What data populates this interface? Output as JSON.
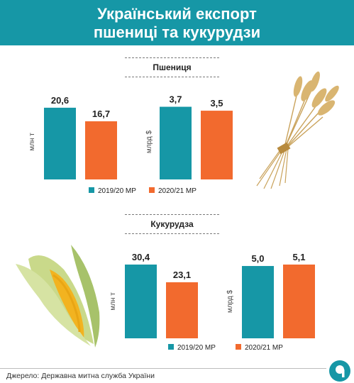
{
  "title_line1": "Український експорт",
  "title_line2": "пшениці та кукурудзи",
  "sections": {
    "wheat": "Пшениця",
    "corn": "Кукурудза"
  },
  "colors": {
    "header": "#1697a6",
    "teal": "#1697a6",
    "orange": "#f26a2e"
  },
  "source": "Джерело: Державна митна служба України",
  "chart_data": [
    {
      "type": "bar",
      "group": "Пшениця",
      "ylabel": "млн т",
      "categories": [
        "2019/20 МР",
        "2020/21 МР"
      ],
      "values": [
        20.6,
        16.7
      ],
      "labels": [
        "20,6",
        "16,7"
      ],
      "ylim": [
        0,
        22
      ]
    },
    {
      "type": "bar",
      "group": "Пшениця",
      "ylabel": "млрд $",
      "categories": [
        "2019/20 МР",
        "2020/21 МР"
      ],
      "values": [
        3.7,
        3.5
      ],
      "labels": [
        "3,7",
        "3,5"
      ],
      "ylim": [
        0,
        3.9
      ]
    },
    {
      "type": "bar",
      "group": "Кукурудза",
      "ylabel": "млн т",
      "categories": [
        "2019/20 МР",
        "2020/21 МР"
      ],
      "values": [
        30.4,
        23.1
      ],
      "labels": [
        "30,4",
        "23,1"
      ],
      "ylim": [
        0,
        30.4
      ]
    },
    {
      "type": "bar",
      "group": "Кукурудза",
      "ylabel": "млрд $",
      "categories": [
        "2019/20 МР",
        "2020/21 МР"
      ],
      "values": [
        5.0,
        5.1
      ],
      "labels": [
        "5,0",
        "5,1"
      ],
      "ylim": [
        0,
        5.1
      ]
    }
  ],
  "legends": [
    {
      "items": [
        "2019/20 МР",
        "2020/21 МР"
      ]
    },
    {
      "items": [
        "2019/20 МР",
        "2020/21 МР"
      ]
    }
  ],
  "icons": {
    "wheat": "wheat-bundle-illustration",
    "corn": "corn-cob-illustration",
    "logo": "brand-logo-icon"
  }
}
